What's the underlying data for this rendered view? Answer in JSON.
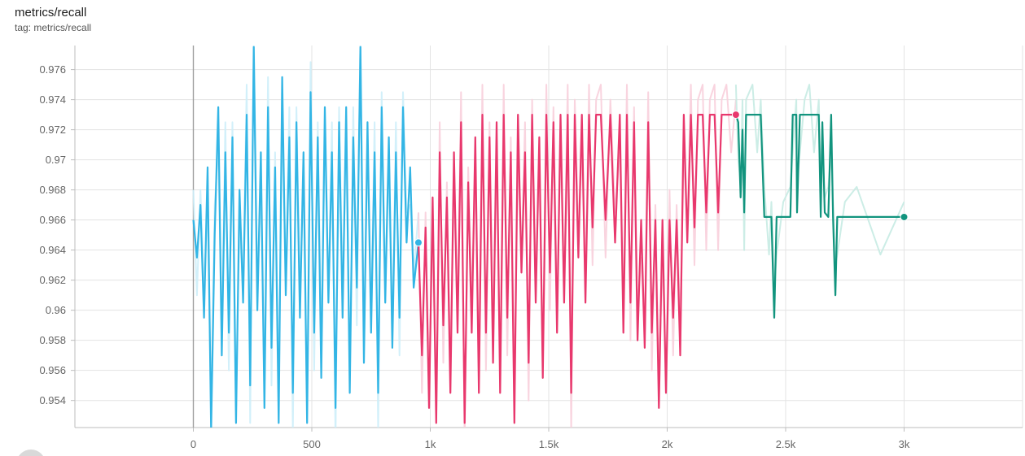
{
  "header": {
    "title": "metrics/recall",
    "tag": "tag: metrics/recall"
  },
  "chart_data": {
    "type": "line",
    "title": "metrics/recall",
    "subtitle": "tag: metrics/recall",
    "xlabel": "",
    "ylabel": "",
    "xlim": [
      -500,
      3500
    ],
    "ylim": [
      0.9522,
      0.9776
    ],
    "x_ticks": [
      0,
      500,
      1000,
      1500,
      2000,
      2500,
      3000
    ],
    "x_tick_labels": [
      "0",
      "500",
      "1k",
      "1.5k",
      "2k",
      "2.5k",
      "3k"
    ],
    "y_ticks": [
      0.954,
      0.956,
      0.958,
      0.96,
      0.962,
      0.964,
      0.966,
      0.968,
      0.97,
      0.972,
      0.974,
      0.976
    ],
    "y_tick_labels": [
      "0.954",
      "0.956",
      "0.958",
      "0.96",
      "0.962",
      "0.964",
      "0.966",
      "0.968",
      "0.97",
      "0.972",
      "0.974",
      "0.976"
    ],
    "grid": true,
    "legend": "none",
    "smoothing_shown": true,
    "series": [
      {
        "color": "#33b5e5",
        "raw_color": "#cdeefa",
        "x_range": [
          0,
          950
        ],
        "end_marker": [
          950,
          0.9645
        ],
        "points": [
          [
            0,
            0.966
          ],
          [
            15,
            0.9635
          ],
          [
            30,
            0.967
          ],
          [
            45,
            0.9595
          ],
          [
            60,
            0.9695
          ],
          [
            75,
            0.952
          ],
          [
            90,
            0.965
          ],
          [
            105,
            0.9735
          ],
          [
            120,
            0.957
          ],
          [
            135,
            0.9705
          ],
          [
            150,
            0.9585
          ],
          [
            165,
            0.9715
          ],
          [
            180,
            0.9525
          ],
          [
            195,
            0.968
          ],
          [
            210,
            0.9605
          ],
          [
            225,
            0.973
          ],
          [
            240,
            0.955
          ],
          [
            255,
            0.9775
          ],
          [
            270,
            0.96
          ],
          [
            285,
            0.9705
          ],
          [
            300,
            0.9535
          ],
          [
            315,
            0.9735
          ],
          [
            330,
            0.9575
          ],
          [
            345,
            0.9695
          ],
          [
            360,
            0.9525
          ],
          [
            375,
            0.9755
          ],
          [
            390,
            0.961
          ],
          [
            405,
            0.9715
          ],
          [
            420,
            0.9545
          ],
          [
            435,
            0.9725
          ],
          [
            450,
            0.9595
          ],
          [
            465,
            0.9705
          ],
          [
            480,
            0.9525
          ],
          [
            495,
            0.9745
          ],
          [
            510,
            0.9585
          ],
          [
            525,
            0.9715
          ],
          [
            540,
            0.9555
          ],
          [
            555,
            0.9735
          ],
          [
            570,
            0.9605
          ],
          [
            585,
            0.9705
          ],
          [
            600,
            0.9535
          ],
          [
            615,
            0.9725
          ],
          [
            630,
            0.9595
          ],
          [
            645,
            0.9735
          ],
          [
            660,
            0.9545
          ],
          [
            675,
            0.9715
          ],
          [
            690,
            0.9615
          ],
          [
            705,
            0.9775
          ],
          [
            720,
            0.9565
          ],
          [
            735,
            0.9725
          ],
          [
            750,
            0.9585
          ],
          [
            765,
            0.9705
          ],
          [
            780,
            0.9545
          ],
          [
            795,
            0.9735
          ],
          [
            810,
            0.9605
          ],
          [
            825,
            0.9715
          ],
          [
            840,
            0.9575
          ],
          [
            855,
            0.9705
          ],
          [
            870,
            0.9595
          ],
          [
            885,
            0.9735
          ],
          [
            900,
            0.9645
          ],
          [
            915,
            0.9695
          ],
          [
            930,
            0.9615
          ],
          [
            950,
            0.9645
          ]
        ]
      },
      {
        "color": "#e8386d",
        "raw_color": "#f8cfdc",
        "x_range": [
          950,
          2290
        ],
        "end_marker": [
          2290,
          0.973
        ],
        "points": [
          [
            950,
            0.9645
          ],
          [
            965,
            0.957
          ],
          [
            980,
            0.9655
          ],
          [
            995,
            0.9535
          ],
          [
            1010,
            0.9675
          ],
          [
            1025,
            0.9525
          ],
          [
            1040,
            0.9705
          ],
          [
            1055,
            0.959
          ],
          [
            1070,
            0.9675
          ],
          [
            1085,
            0.9545
          ],
          [
            1100,
            0.9705
          ],
          [
            1115,
            0.9585
          ],
          [
            1130,
            0.9725
          ],
          [
            1145,
            0.9525
          ],
          [
            1160,
            0.9685
          ],
          [
            1175,
            0.9585
          ],
          [
            1190,
            0.9715
          ],
          [
            1205,
            0.9545
          ],
          [
            1220,
            0.973
          ],
          [
            1235,
            0.9585
          ],
          [
            1250,
            0.9715
          ],
          [
            1265,
            0.9565
          ],
          [
            1280,
            0.9725
          ],
          [
            1295,
            0.9545
          ],
          [
            1310,
            0.973
          ],
          [
            1325,
            0.9595
          ],
          [
            1340,
            0.9705
          ],
          [
            1355,
            0.9525
          ],
          [
            1370,
            0.973
          ],
          [
            1385,
            0.9625
          ],
          [
            1400,
            0.9705
          ],
          [
            1415,
            0.9565
          ],
          [
            1430,
            0.973
          ],
          [
            1445,
            0.9605
          ],
          [
            1460,
            0.9715
          ],
          [
            1475,
            0.9555
          ],
          [
            1490,
            0.973
          ],
          [
            1505,
            0.9625
          ],
          [
            1520,
            0.9725
          ],
          [
            1535,
            0.9585
          ],
          [
            1550,
            0.973
          ],
          [
            1565,
            0.9605
          ],
          [
            1580,
            0.973
          ],
          [
            1595,
            0.9545
          ],
          [
            1610,
            0.973
          ],
          [
            1625,
            0.9635
          ],
          [
            1640,
            0.973
          ],
          [
            1655,
            0.9605
          ],
          [
            1670,
            0.973
          ],
          [
            1685,
            0.9655
          ],
          [
            1700,
            0.973
          ],
          [
            1720,
            0.973
          ],
          [
            1740,
            0.966
          ],
          [
            1760,
            0.973
          ],
          [
            1780,
            0.9645
          ],
          [
            1800,
            0.973
          ],
          [
            1815,
            0.9585
          ],
          [
            1830,
            0.973
          ],
          [
            1845,
            0.9605
          ],
          [
            1860,
            0.9725
          ],
          [
            1875,
            0.958
          ],
          [
            1890,
            0.966
          ],
          [
            1905,
            0.9575
          ],
          [
            1920,
            0.9725
          ],
          [
            1935,
            0.9585
          ],
          [
            1950,
            0.966
          ],
          [
            1965,
            0.9535
          ],
          [
            1980,
            0.966
          ],
          [
            1995,
            0.9545
          ],
          [
            2010,
            0.966
          ],
          [
            2025,
            0.9595
          ],
          [
            2040,
            0.966
          ],
          [
            2055,
            0.957
          ],
          [
            2070,
            0.973
          ],
          [
            2085,
            0.9645
          ],
          [
            2100,
            0.973
          ],
          [
            2115,
            0.9655
          ],
          [
            2130,
            0.973
          ],
          [
            2150,
            0.973
          ],
          [
            2165,
            0.9665
          ],
          [
            2180,
            0.973
          ],
          [
            2200,
            0.973
          ],
          [
            2215,
            0.9665
          ],
          [
            2230,
            0.973
          ],
          [
            2250,
            0.973
          ],
          [
            2270,
            0.973
          ],
          [
            2290,
            0.973
          ]
        ]
      },
      {
        "color": "#12947e",
        "raw_color": "#c6ebe3",
        "x_range": [
          2290,
          3000
        ],
        "end_marker": [
          3000,
          0.9662
        ],
        "points": [
          [
            2290,
            0.973
          ],
          [
            2300,
            0.9725
          ],
          [
            2310,
            0.9675
          ],
          [
            2318,
            0.972
          ],
          [
            2325,
            0.9665
          ],
          [
            2333,
            0.973
          ],
          [
            2360,
            0.973
          ],
          [
            2380,
            0.973
          ],
          [
            2395,
            0.973
          ],
          [
            2410,
            0.9662
          ],
          [
            2430,
            0.9662
          ],
          [
            2440,
            0.9662
          ],
          [
            2452,
            0.9595
          ],
          [
            2462,
            0.9662
          ],
          [
            2490,
            0.9662
          ],
          [
            2520,
            0.9662
          ],
          [
            2530,
            0.973
          ],
          [
            2545,
            0.973
          ],
          [
            2548,
            0.9665
          ],
          [
            2560,
            0.973
          ],
          [
            2580,
            0.973
          ],
          [
            2600,
            0.973
          ],
          [
            2620,
            0.973
          ],
          [
            2640,
            0.973
          ],
          [
            2648,
            0.9662
          ],
          [
            2655,
            0.9725
          ],
          [
            2665,
            0.9665
          ],
          [
            2680,
            0.9662
          ],
          [
            2692,
            0.973
          ],
          [
            2700,
            0.9662
          ],
          [
            2710,
            0.961
          ],
          [
            2718,
            0.9662
          ],
          [
            2750,
            0.9662
          ],
          [
            2800,
            0.9662
          ],
          [
            2900,
            0.9662
          ],
          [
            3000,
            0.9662
          ]
        ]
      }
    ]
  }
}
